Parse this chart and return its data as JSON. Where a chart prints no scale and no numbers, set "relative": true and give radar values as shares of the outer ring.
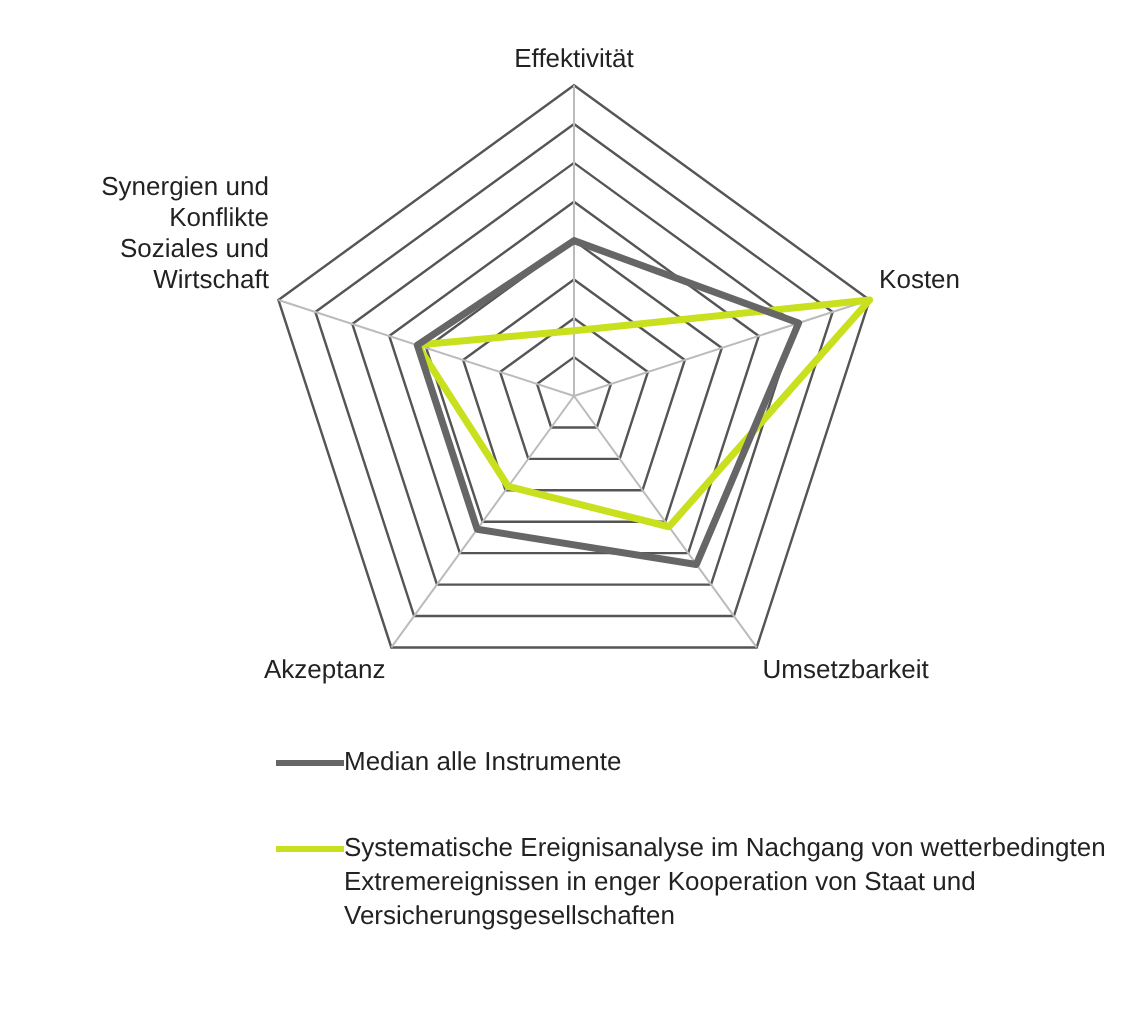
{
  "chart_data": {
    "type": "radar",
    "relative": true,
    "categories": [
      "Effektivität",
      "Kosten",
      "Umsetzbarkeit",
      "Akzeptanz",
      "Synergien und Konflikte Soziales und Wirtschaft"
    ],
    "series": [
      {
        "name": "Median alle Instrumente",
        "color": "#666666",
        "values": [
          0.5,
          0.76,
          0.67,
          0.53,
          0.53
        ]
      },
      {
        "name": "Systematische Ereignisanalyse im Nachgang von wetterbedingten Extremereignissen in enger Kooperation von Staat und Versicherungsgesellschaften",
        "color": "#c8e01e",
        "values": [
          0.21,
          1,
          0.52,
          0.36,
          0.53
        ]
      }
    ],
    "legend": "bottom",
    "marker": "none",
    "line_style": "solid"
  }
}
